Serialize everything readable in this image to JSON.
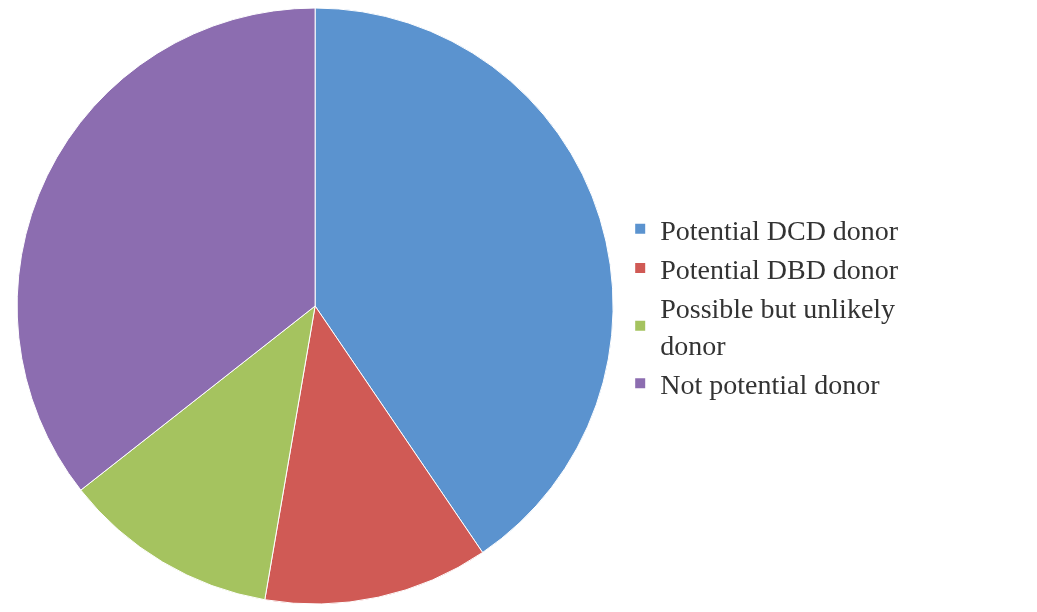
{
  "chart_data": {
    "type": "pie",
    "categories": [
      "Potential DCD donor",
      "Potential DBD donor",
      "Possible but unlikely donor",
      "Not potential donor"
    ],
    "values": [
      40.5,
      12.2,
      11.7,
      35.6
    ],
    "colors": [
      "#5b93cf",
      "#d05a55",
      "#a5c35f",
      "#8c6db0"
    ],
    "legend": "right"
  }
}
